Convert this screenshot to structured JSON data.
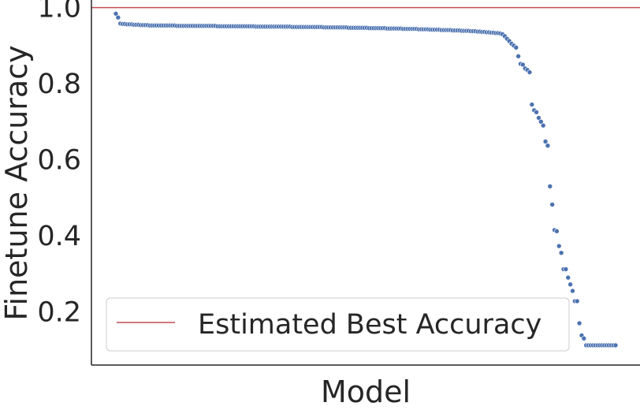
{
  "chart_data": {
    "type": "scatter",
    "xlabel": "Model",
    "ylabel": "Finetune Accuracy",
    "ylim": [
      0.06,
      1.02
    ],
    "yticks": [
      0.2,
      0.4,
      0.6,
      0.8,
      1.0
    ],
    "ytick_labels": [
      "0.2",
      "0.4",
      "0.6",
      "0.8",
      "1.0"
    ],
    "xtick_labels": [],
    "grid": false,
    "point_color": "#4c72b0",
    "reference_line": {
      "name": "Estimated Best Accuracy",
      "y": 1.0,
      "color": "#c44e52"
    },
    "legend": {
      "position": "bottom-left",
      "entries": [
        "Estimated Best Accuracy"
      ]
    },
    "series": [
      {
        "values": [
          0.984,
          0.974,
          0.958,
          0.957,
          0.957,
          0.956,
          0.956,
          0.956,
          0.955,
          0.955,
          0.955,
          0.954,
          0.954,
          0.954,
          0.954,
          0.953,
          0.953,
          0.953,
          0.953,
          0.953,
          0.953,
          0.953,
          0.953,
          0.953,
          0.953,
          0.953,
          0.953,
          0.952,
          0.952,
          0.952,
          0.952,
          0.952,
          0.952,
          0.952,
          0.952,
          0.952,
          0.952,
          0.952,
          0.952,
          0.952,
          0.952,
          0.952,
          0.952,
          0.952,
          0.952,
          0.951,
          0.951,
          0.951,
          0.951,
          0.951,
          0.951,
          0.951,
          0.951,
          0.951,
          0.951,
          0.951,
          0.951,
          0.951,
          0.951,
          0.951,
          0.951,
          0.951,
          0.95,
          0.95,
          0.95,
          0.95,
          0.95,
          0.95,
          0.95,
          0.95,
          0.95,
          0.95,
          0.95,
          0.95,
          0.95,
          0.95,
          0.95,
          0.95,
          0.949,
          0.949,
          0.949,
          0.949,
          0.949,
          0.949,
          0.949,
          0.949,
          0.949,
          0.949,
          0.949,
          0.949,
          0.949,
          0.949,
          0.948,
          0.948,
          0.948,
          0.948,
          0.948,
          0.948,
          0.948,
          0.948,
          0.948,
          0.948,
          0.948,
          0.947,
          0.947,
          0.947,
          0.947,
          0.947,
          0.947,
          0.947,
          0.947,
          0.947,
          0.946,
          0.946,
          0.946,
          0.946,
          0.946,
          0.946,
          0.946,
          0.946,
          0.945,
          0.945,
          0.945,
          0.945,
          0.945,
          0.945,
          0.945,
          0.944,
          0.944,
          0.944,
          0.944,
          0.944,
          0.944,
          0.944,
          0.943,
          0.943,
          0.943,
          0.943,
          0.943,
          0.942,
          0.942,
          0.942,
          0.942,
          0.942,
          0.941,
          0.941,
          0.941,
          0.941,
          0.941,
          0.94,
          0.94,
          0.94,
          0.94,
          0.939,
          0.939,
          0.939,
          0.939,
          0.938,
          0.938,
          0.938,
          0.937,
          0.937,
          0.936,
          0.936,
          0.935,
          0.935,
          0.934,
          0.934,
          0.933,
          0.933,
          0.932,
          0.93,
          0.925,
          0.918,
          0.912,
          0.905,
          0.9,
          0.895,
          0.872,
          0.852,
          0.85,
          0.84,
          0.836,
          0.83,
          0.745,
          0.73,
          0.725,
          0.71,
          0.7,
          0.69,
          0.648,
          0.637,
          0.53,
          0.482,
          0.415,
          0.412,
          0.373,
          0.355,
          0.312,
          0.312,
          0.29,
          0.272,
          0.255,
          0.228,
          0.228,
          0.17,
          0.138,
          0.13,
          0.112,
          0.112,
          0.112,
          0.112,
          0.112,
          0.112,
          0.112,
          0.112,
          0.112,
          0.112,
          0.112,
          0.112,
          0.112,
          0.112
        ]
      }
    ]
  }
}
